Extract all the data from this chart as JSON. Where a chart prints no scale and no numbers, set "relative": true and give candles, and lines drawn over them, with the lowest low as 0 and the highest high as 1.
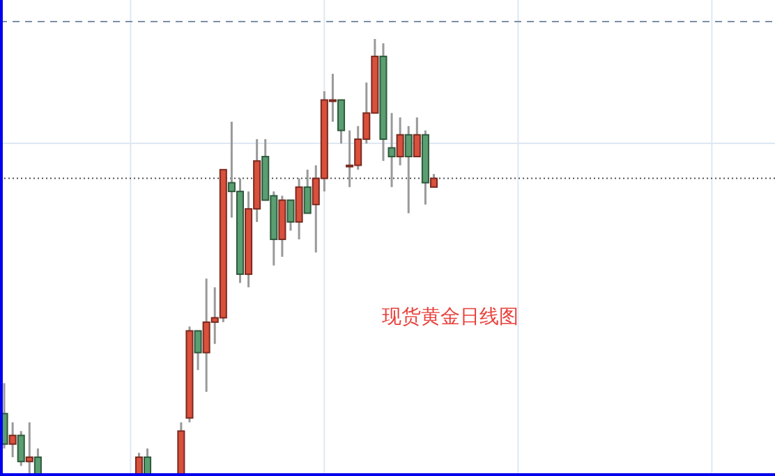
{
  "chart_data": {
    "type": "candlestick",
    "relative": true,
    "grid": true,
    "annotations": [
      "现货黄金日线图"
    ],
    "categories": [
      null,
      null,
      null,
      null,
      null,
      null,
      null,
      null,
      null,
      null,
      null,
      null,
      null,
      null,
      null,
      null,
      null,
      null,
      null,
      null,
      null,
      null,
      null,
      null,
      null,
      null,
      null,
      null,
      null,
      null,
      null,
      null,
      null,
      null,
      null,
      null,
      null,
      null,
      null,
      null,
      null,
      null,
      null,
      null,
      null,
      null,
      null,
      null,
      null,
      null,
      null,
      null,
      null,
      null,
      null,
      null,
      null,
      null,
      null,
      null,
      null,
      null,
      null,
      null,
      null,
      null,
      null,
      null,
      null,
      null,
      null,
      null,
      null,
      null,
      null,
      null,
      null,
      null,
      null,
      null,
      null,
      null,
      null,
      null,
      null,
      null,
      null,
      null,
      null,
      null,
      null,
      null
    ],
    "ohlc": [
      [
        0.14,
        0.21,
        0.06,
        0.07
      ],
      [
        0.07,
        0.12,
        0.04,
        0.09
      ],
      [
        0.09,
        0.1,
        0.02,
        0.03
      ],
      [
        0.03,
        0.12,
        0,
        0.04
      ],
      [
        0.04,
        0.06,
        0,
        0
      ],
      null,
      null,
      null,
      null,
      null,
      null,
      null,
      null,
      null,
      null,
      null,
      [
        0,
        0.05,
        0,
        0.04
      ],
      [
        0.04,
        0.06,
        0,
        0
      ],
      null,
      null,
      null,
      [
        0,
        0.12,
        0,
        0.1
      ],
      [
        0.13,
        0.34,
        0.12,
        0.33
      ],
      [
        0.33,
        0.33,
        0.24,
        0.28
      ],
      [
        0.28,
        0.45,
        0.19,
        0.35
      ],
      [
        0.35,
        0.43,
        0.3,
        0.36
      ],
      [
        0.36,
        0.7,
        0.35,
        0.7
      ],
      [
        0.67,
        0.81,
        0.59,
        0.65
      ],
      [
        0.65,
        0.68,
        0.44,
        0.46
      ],
      [
        0.46,
        0.65,
        0.43,
        0.61
      ],
      [
        0.61,
        0.77,
        0.58,
        0.72
      ],
      [
        0.73,
        0.77,
        0.63,
        0.63
      ],
      [
        0.64,
        0.65,
        0.48,
        0.54
      ],
      [
        0.54,
        0.64,
        0.5,
        0.63
      ],
      [
        0.63,
        0.63,
        0.56,
        0.58
      ],
      [
        0.58,
        0.68,
        0.54,
        0.66
      ],
      [
        0.66,
        0.7,
        0.6,
        0.6
      ],
      [
        0.62,
        0.71,
        0.51,
        0.68
      ],
      [
        0.68,
        0.88,
        0.65,
        0.86
      ],
      [
        0.86,
        0.92,
        0.81,
        0.86
      ],
      [
        0.86,
        0.86,
        0.76,
        0.79
      ],
      [
        0.71,
        0.79,
        0.66,
        0.71
      ],
      [
        0.71,
        0.8,
        0.7,
        0.77
      ],
      [
        0.77,
        0.9,
        0.76,
        0.83
      ],
      [
        0.83,
        1,
        0.83,
        0.96
      ],
      [
        0.96,
        0.99,
        0.72,
        0.77
      ],
      [
        0.75,
        0.83,
        0.66,
        0.73
      ],
      [
        0.73,
        0.82,
        0.71,
        0.78
      ],
      [
        0.78,
        0.8,
        0.6,
        0.73
      ],
      [
        0.73,
        0.82,
        0.73,
        0.78
      ],
      [
        0.78,
        0.79,
        0.62,
        0.67
      ],
      [
        0.66,
        0.69,
        0.66,
        0.68
      ],
      null,
      null,
      null,
      null,
      null,
      null,
      null,
      null,
      null,
      null,
      null,
      null,
      null,
      null,
      null,
      null,
      null,
      null,
      null,
      null,
      null,
      null,
      null,
      null,
      null,
      null,
      null,
      null,
      null,
      null,
      null,
      null,
      null,
      null,
      null,
      null,
      null,
      null,
      null,
      null
    ],
    "colors": [
      "#5a9e72",
      "#d9503c",
      "#5a9e72",
      "#d9503c",
      "#5a9e72",
      null,
      null,
      null,
      null,
      null,
      null,
      null,
      null,
      null,
      null,
      null,
      "#d9503c",
      "#5a9e72",
      null,
      null,
      null,
      "#d9503c",
      "#d9503c",
      "#5a9e72",
      "#d9503c",
      "#d9503c",
      "#d9503c",
      "#5a9e72",
      "#5a9e72",
      "#d9503c",
      "#d9503c",
      "#5a9e72",
      "#5a9e72",
      "#d9503c",
      "#5a9e72",
      "#d9503c",
      "#5a9e72",
      "#d9503c",
      "#d9503c",
      "#d9503c",
      "#5a9e72",
      "#5a9e72",
      "#d9503c",
      "#d9503c",
      "#d9503c",
      "#5a9e72",
      "#5a9e72",
      "#d9503c",
      "#5a9e72",
      "#d9503c",
      "#5a9e72",
      "#d9503c",
      null,
      null,
      null,
      null,
      null,
      null,
      null,
      null,
      null,
      null,
      null,
      null,
      null,
      null,
      null,
      null,
      null,
      null,
      null,
      null,
      null,
      null,
      null,
      null,
      null,
      null,
      null,
      null,
      null,
      null,
      null,
      null,
      null,
      null,
      null,
      null,
      null,
      null,
      null,
      null
    ],
    "ref_lines": [
      {
        "axis": "y",
        "value": 0.68,
        "color": "#555555",
        "line_style": "dotted"
      },
      {
        "axis": "y",
        "value": 1.04,
        "color": "#7d8fa6",
        "line_style": "dashed"
      }
    ]
  }
}
